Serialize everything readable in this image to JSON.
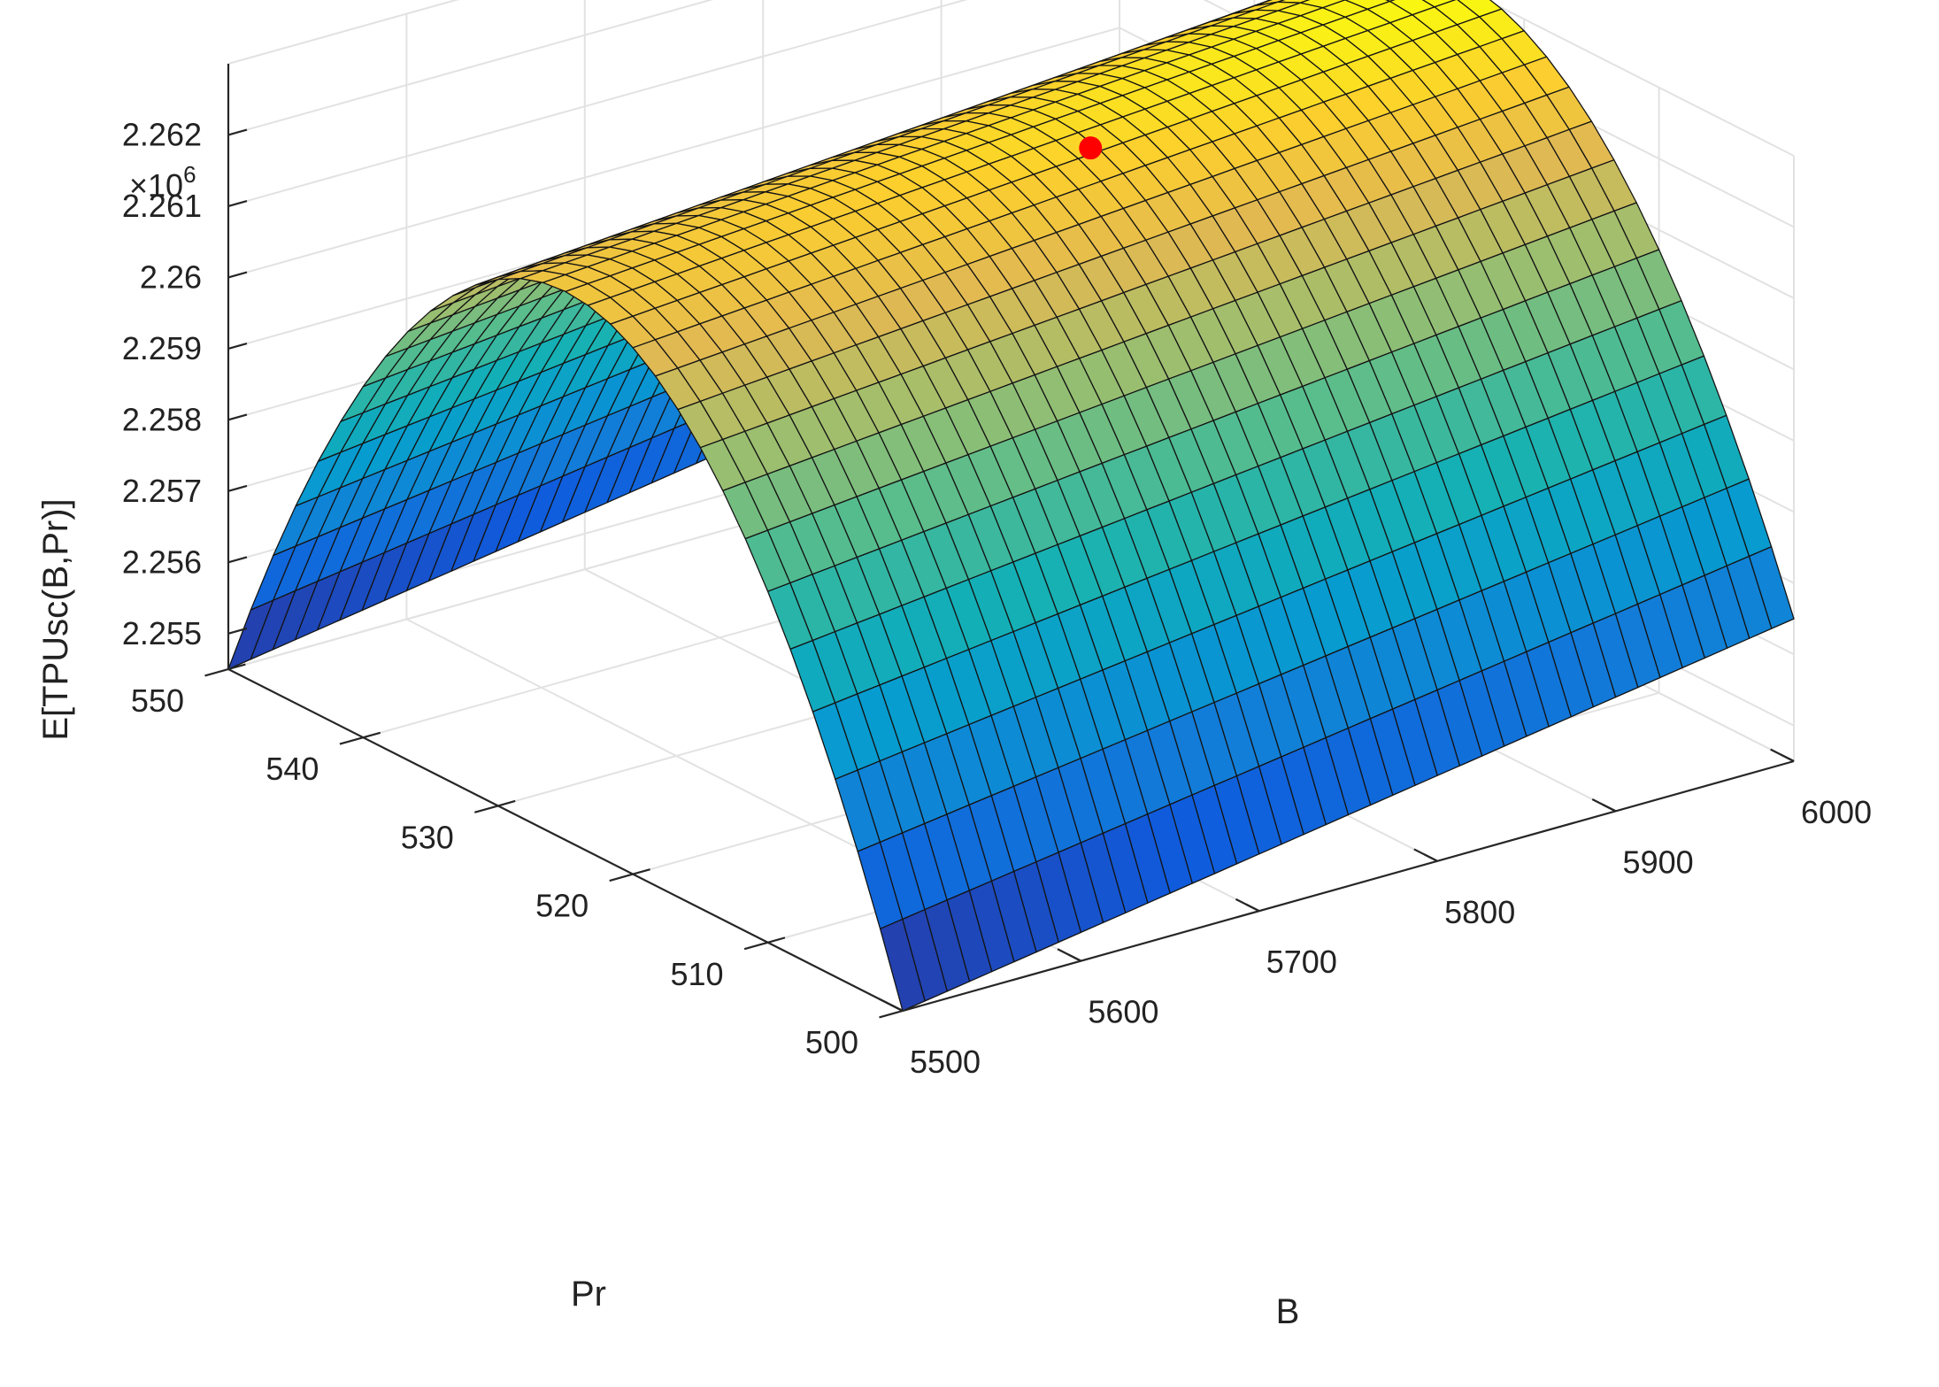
{
  "chart_data": {
    "type": "surface",
    "zlabel": "E[TPUsc(B,Pr)]",
    "xlabel": "B",
    "ylabel": "Pr",
    "z_exponent_label": "×10",
    "z_exponent_power": "6",
    "xlim": [
      5500,
      6000
    ],
    "ylim": [
      500,
      550
    ],
    "zlim": [
      2.2545,
      2.263
    ],
    "x_ticks": [
      5500,
      5600,
      5700,
      5800,
      5900,
      6000
    ],
    "x_tick_labels": [
      "5500",
      "5600",
      "5700",
      "5800",
      "5900",
      "6000"
    ],
    "y_ticks": [
      500,
      510,
      520,
      530,
      540,
      550
    ],
    "y_tick_labels": [
      "500",
      "510",
      "520",
      "530",
      "540",
      "550"
    ],
    "z_ticks": [
      2.255,
      2.256,
      2.257,
      2.258,
      2.259,
      2.26,
      2.261,
      2.262
    ],
    "z_tick_labels": [
      "2.255",
      "2.256",
      "2.257",
      "2.258",
      "2.259",
      "2.26",
      "2.261",
      "2.262"
    ],
    "surface": {
      "x_range": [
        5500,
        6000
      ],
      "y_range": [
        500,
        550
      ],
      "peak_pr": 525,
      "peak_value_at_b5500": 2.2622,
      "peak_value_at_b6000": 2.2631,
      "edge_value_at_b5500": 2.2545,
      "edge_value_at_b6000": 2.2565,
      "grid_b": 40,
      "grid_pr": 30,
      "colormap": "parula"
    },
    "optimum_point": {
      "x": 5787,
      "y": 524,
      "z": 2.2623,
      "color": "#ff0000"
    },
    "grid": true
  }
}
